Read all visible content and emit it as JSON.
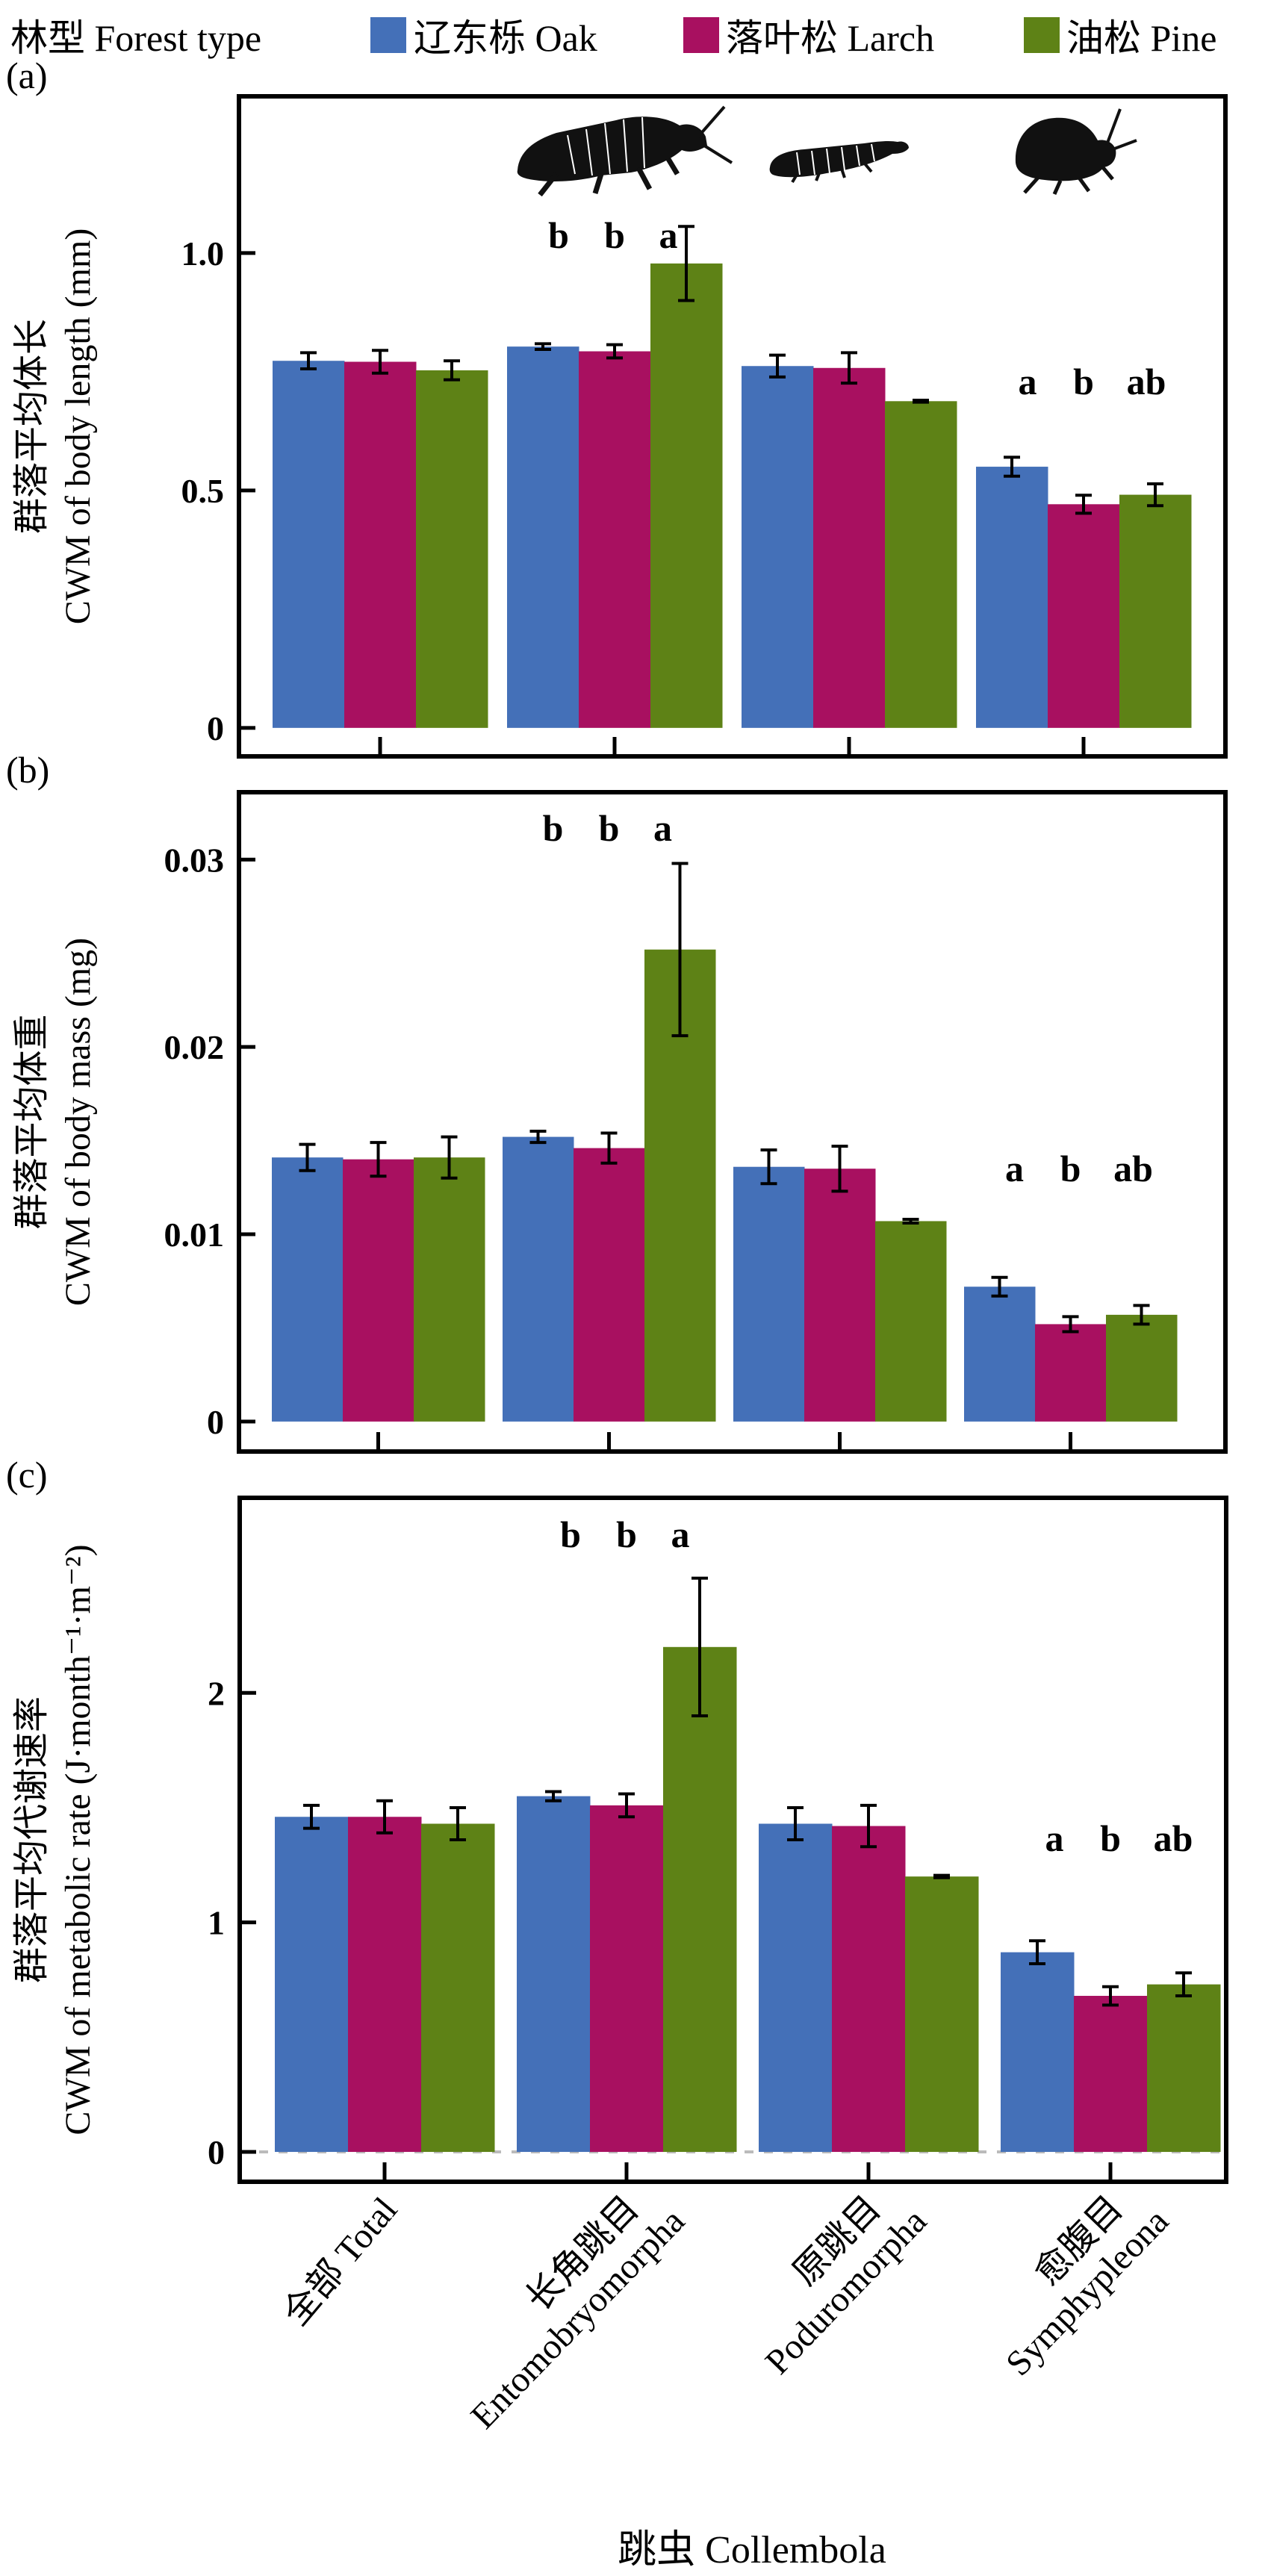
{
  "legend": {
    "title": "林型 Forest type",
    "items": [
      {
        "key": "oak",
        "label": "辽东栎 Oak",
        "color": "#4470B8"
      },
      {
        "key": "larch",
        "label": "落叶松 Larch",
        "color": "#A81060"
      },
      {
        "key": "pine",
        "label": "油松 Pine",
        "color": "#5E8216"
      }
    ]
  },
  "x_title": "跳虫 Collembola",
  "icons": [
    "entomobryomorpha-silhouette-icon",
    "poduromorpha-silhouette-icon",
    "symphypleona-silhouette-icon"
  ],
  "chart_data": [
    {
      "type": "bar",
      "panel": "(a)",
      "ylabel_cn": "群落平均体长",
      "ylabel_en": "CWM of body length (mm)",
      "categories": [
        {
          "cn": "全部 Total",
          "en": ""
        },
        {
          "cn": "长角跳目",
          "en": "Entomobryomorpha"
        },
        {
          "cn": "原跳目",
          "en": "Poduromorpha"
        },
        {
          "cn": "愈腹目",
          "en": "Symphypleona"
        }
      ],
      "ylim": [
        -0.06,
        1.33
      ],
      "yticks": [
        0,
        0.5,
        1.0
      ],
      "ytick_labels": [
        "0",
        "0.5",
        "1.0"
      ],
      "series": [
        {
          "name": "辽东栎 Oak",
          "values": [
            0.773,
            0.803,
            0.762,
            0.55
          ],
          "errors": [
            0.017,
            0.006,
            0.023,
            0.02
          ]
        },
        {
          "name": "落叶松 Larch",
          "values": [
            0.771,
            0.793,
            0.758,
            0.471
          ],
          "errors": [
            0.024,
            0.014,
            0.032,
            0.019
          ]
        },
        {
          "name": "油松 Pine",
          "values": [
            0.753,
            0.978,
            0.688,
            0.491
          ],
          "errors": [
            0.02,
            0.078,
            0.002,
            0.023
          ]
        }
      ],
      "significance": [
        {
          "category_index": 1,
          "letters": [
            "b",
            "b",
            "a"
          ]
        },
        {
          "category_index": 3,
          "letters": [
            "a",
            "b",
            "ab"
          ]
        }
      ]
    },
    {
      "type": "bar",
      "panel": "(b)",
      "ylabel_cn": "群落平均体重",
      "ylabel_en": "CWM of body mass (mg)",
      "categories": [
        {
          "cn": "全部 Total",
          "en": ""
        },
        {
          "cn": "长角跳目",
          "en": "Entomobryomorpha"
        },
        {
          "cn": "原跳目",
          "en": "Poduromorpha"
        },
        {
          "cn": "愈腹目",
          "en": "Symphypleona"
        }
      ],
      "ylim": [
        -0.0016,
        0.0336
      ],
      "yticks": [
        0,
        0.01,
        0.02,
        0.03
      ],
      "ytick_labels": [
        "0",
        "0.01",
        "0.02",
        "0.03"
      ],
      "series": [
        {
          "name": "辽东栎 Oak",
          "values": [
            0.0141,
            0.0152,
            0.0136,
            0.0072
          ],
          "errors": [
            0.0007,
            0.0003,
            0.0009,
            0.0005
          ]
        },
        {
          "name": "落叶松 Larch",
          "values": [
            0.014,
            0.0146,
            0.0135,
            0.0052
          ],
          "errors": [
            0.0009,
            0.0008,
            0.0012,
            0.0004
          ]
        },
        {
          "name": "油松 Pine",
          "values": [
            0.0141,
            0.0252,
            0.0107,
            0.0057
          ],
          "errors": [
            0.0011,
            0.0046,
            0.0001,
            0.0005
          ]
        }
      ],
      "significance": [
        {
          "category_index": 1,
          "letters": [
            "b",
            "b",
            "a"
          ]
        },
        {
          "category_index": 3,
          "letters": [
            "a",
            "b",
            "ab"
          ]
        }
      ]
    },
    {
      "type": "bar",
      "panel": "(c)",
      "ylabel_cn": "群落平均代谢速率",
      "ylabel_en": "CWM of metabolic rate (J·month⁻¹·m⁻²)",
      "categories": [
        {
          "cn": "全部 Total",
          "en": ""
        },
        {
          "cn": "长角跳目",
          "en": "Entomobryomorpha"
        },
        {
          "cn": "原跳目",
          "en": "Poduromorpha"
        },
        {
          "cn": "愈腹目",
          "en": "Symphypleona"
        }
      ],
      "ylim": [
        -0.13,
        2.85
      ],
      "yticks": [
        0,
        1,
        2
      ],
      "ytick_labels": [
        "0",
        "1",
        "2"
      ],
      "series": [
        {
          "name": "辽东栎 Oak",
          "values": [
            1.46,
            1.55,
            1.43,
            0.87
          ],
          "errors": [
            0.05,
            0.02,
            0.07,
            0.05
          ]
        },
        {
          "name": "落叶松 Larch",
          "values": [
            1.46,
            1.51,
            1.42,
            0.68
          ],
          "errors": [
            0.07,
            0.05,
            0.09,
            0.04
          ]
        },
        {
          "name": "油松 Pine",
          "values": [
            1.43,
            2.2,
            1.2,
            0.73
          ],
          "errors": [
            0.07,
            0.3,
            0.005,
            0.05
          ]
        }
      ],
      "significance": [
        {
          "category_index": 1,
          "letters": [
            "b",
            "b",
            "a"
          ]
        },
        {
          "category_index": 3,
          "letters": [
            "a",
            "b",
            "ab"
          ]
        }
      ],
      "zero_line": "dashed-gray"
    }
  ]
}
